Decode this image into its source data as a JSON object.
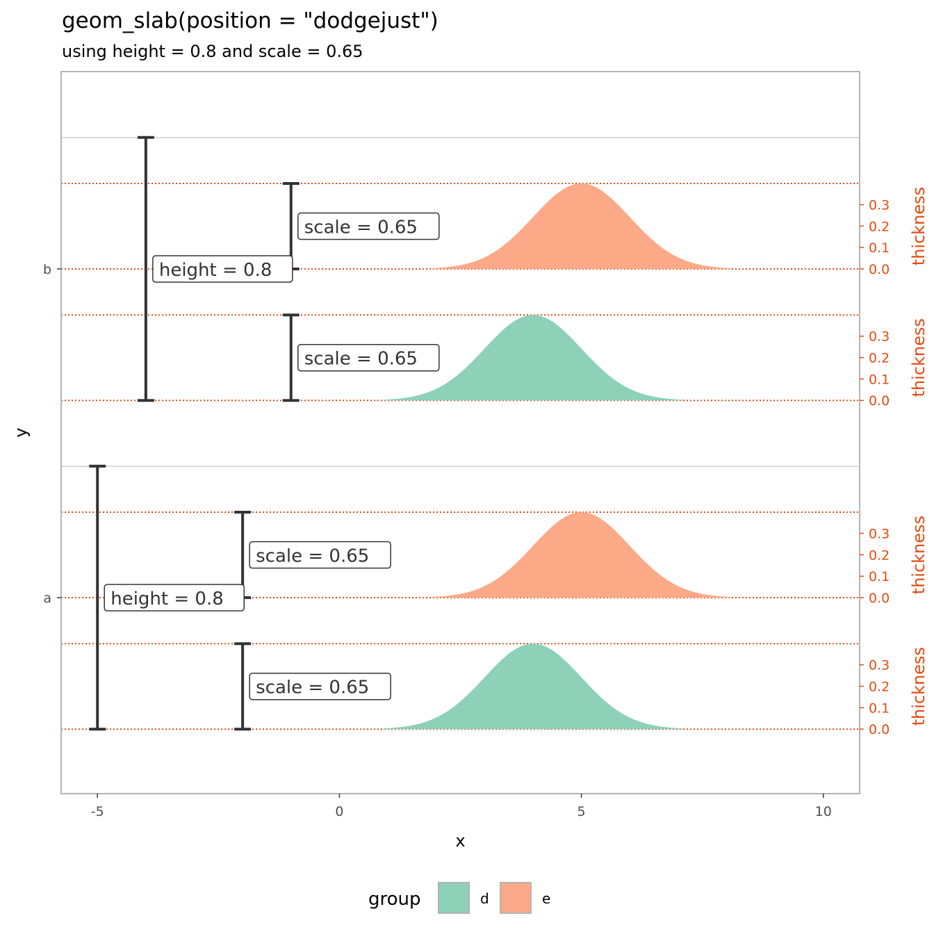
{
  "chart_data": {
    "type": "area",
    "title": "geom_slab(position = \"dodgejust\")",
    "subtitle": "using height = 0.8 and scale = 0.65",
    "xlabel": "x",
    "ylabel": "y",
    "xlim": [
      -5.75,
      10.75
    ],
    "x_ticks": [
      -5,
      0,
      5,
      10
    ],
    "x_tick_labels": [
      "-5",
      "0",
      "5",
      "10"
    ],
    "y_categories": [
      "a",
      "b"
    ],
    "thickness_axis_title": "thickness",
    "thickness_ticks": [
      0.0,
      0.1,
      0.2,
      0.3
    ],
    "thickness_tick_labels": [
      "0.0",
      "0.1",
      "0.2",
      "0.3"
    ],
    "thickness_max": 0.3989,
    "height": 0.8,
    "scale": 0.65,
    "series": [
      {
        "name": "d",
        "distribution": "normal",
        "mean": 4,
        "sd": 1,
        "x_range": [
          0.9,
          7.1
        ],
        "color": "#8dd1b9"
      },
      {
        "name": "e",
        "distribution": "normal",
        "mean": 5,
        "sd": 1,
        "x_range": [
          1.9,
          8.1
        ],
        "color": "#fca987"
      }
    ],
    "annotations": {
      "height_label": "height = 0.8",
      "scale_label": "scale = 0.65"
    },
    "legend": {
      "title": "group",
      "position": "bottom",
      "items": [
        "d",
        "e"
      ]
    },
    "grid": true,
    "colors": {
      "guide": "#e64a0f",
      "bracket": "#333333",
      "grid": "#d9d9d9",
      "panel_border": "#b3b3b3"
    }
  }
}
